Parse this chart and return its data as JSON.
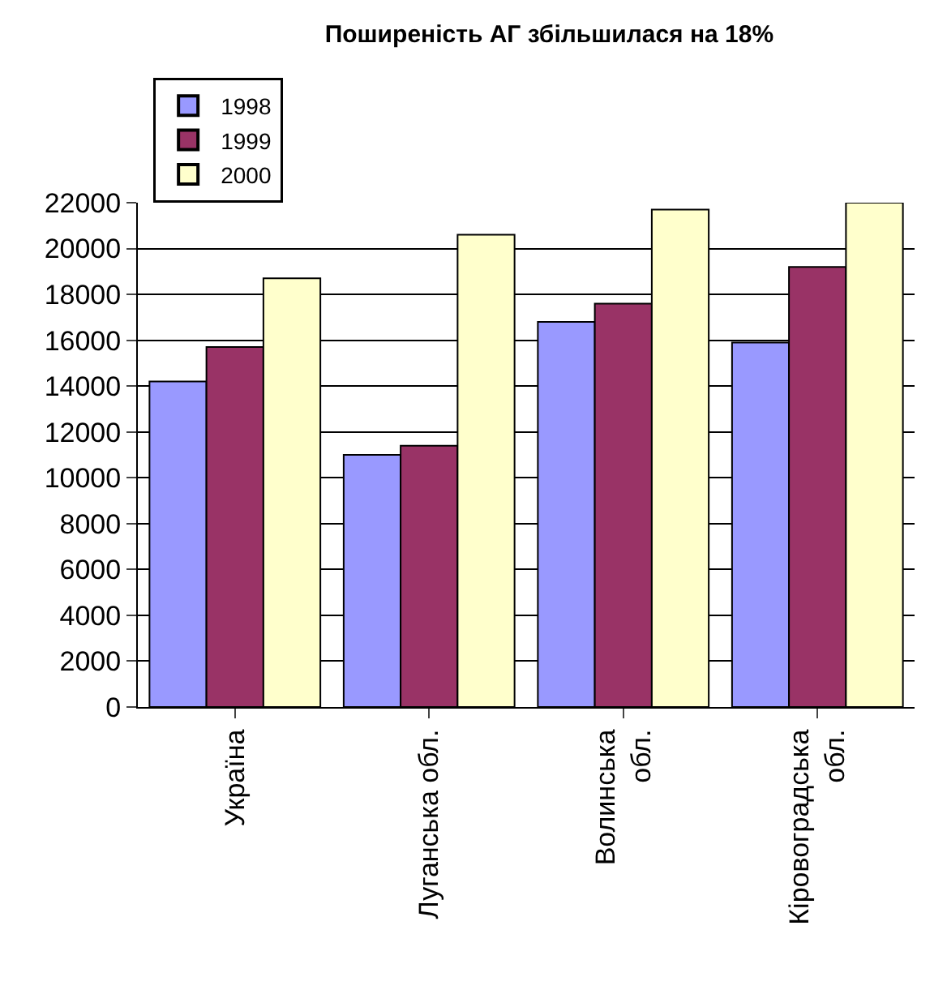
{
  "chart_data": {
    "type": "bar",
    "title": "Поширеність АГ збільшилася на 18%",
    "categories": [
      "Україна",
      "Луганська обл.",
      "Волинська\nобл.",
      "Кіровоградська\nобл."
    ],
    "series": [
      {
        "name": "1998",
        "color": "#9999ff",
        "values": [
          14200,
          11000,
          16800,
          15900
        ]
      },
      {
        "name": "1999",
        "color": "#993366",
        "values": [
          15700,
          11400,
          17600,
          19200
        ]
      },
      {
        "name": "2000",
        "color": "#ffffcc",
        "values": [
          18700,
          20600,
          21700,
          22000
        ]
      }
    ],
    "ylim": [
      0,
      22000
    ],
    "yticks": [
      0,
      2000,
      4000,
      6000,
      8000,
      10000,
      12000,
      14000,
      16000,
      18000,
      20000,
      22000
    ],
    "grid": "y",
    "legend": "top left"
  }
}
